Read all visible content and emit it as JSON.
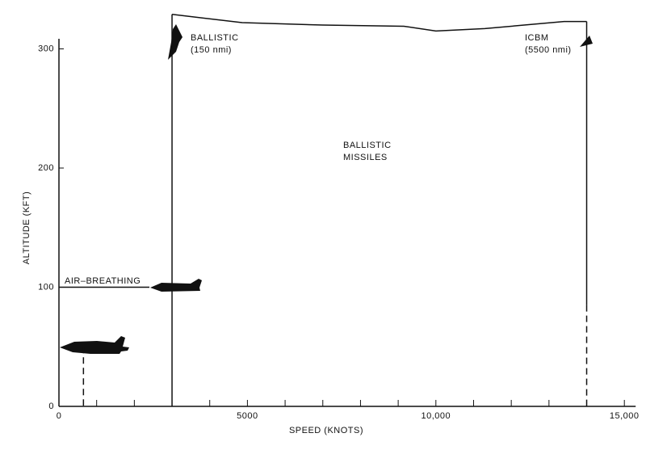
{
  "chart_data": {
    "type": "envelope",
    "xlabel": "SPEED (KNOTS)",
    "ylabel": "ALTITUDE (KFT)",
    "xlim": [
      0,
      15300
    ],
    "ylim": [
      0,
      330
    ],
    "xticks": [
      0,
      5000,
      {
        "value": 10000,
        "label": "10,000"
      },
      {
        "value": 15000,
        "label": "15,000"
      }
    ],
    "x_minor_ticks": [
      1000,
      2000,
      3000,
      4000,
      6000,
      7000,
      8000,
      9000,
      11000,
      12000,
      13000,
      14000
    ],
    "yticks": [
      0,
      100,
      200,
      300
    ],
    "color": "#111111",
    "lines": [
      {
        "x": [
          0,
          2400
        ],
        "values": [
          100,
          100
        ],
        "dashed": false
      },
      {
        "x": [
          3000,
          3000
        ],
        "values": [
          0,
          329
        ],
        "dashed": false
      },
      {
        "x": [
          3000,
          4860,
          7000,
          9150,
          10000,
          11300,
          13400,
          14000
        ],
        "values": [
          329,
          322,
          320,
          319,
          315,
          317,
          323,
          323
        ],
        "dashed": false
      },
      {
        "x": [
          14000,
          14000
        ],
        "values": [
          323,
          85
        ],
        "dashed": false
      },
      {
        "x": [
          14000,
          14000
        ],
        "values": [
          85,
          0
        ],
        "dashed": true
      },
      {
        "x": [
          650,
          650
        ],
        "values": [
          50,
          0
        ],
        "dashed": true
      }
    ],
    "annotations": {
      "air_breathing": "AIR–BREATHING",
      "ballistic": [
        "BALLISTIC",
        "(150 nmi)"
      ],
      "icbm": [
        "ICBM",
        "(5500 nmi)"
      ],
      "region": [
        "BALLISTIC",
        "MISSILES"
      ]
    }
  }
}
